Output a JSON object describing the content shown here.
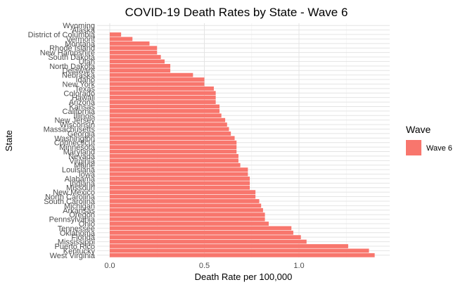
{
  "chart_data": {
    "type": "bar",
    "orientation": "horizontal",
    "title": "COVID-19 Death Rates by State - Wave 6",
    "xlabel": "Death Rate per 100,000",
    "ylabel": "State",
    "xlim": [
      0,
      1.4
    ],
    "xticks": [
      "0.0",
      "0.5",
      "1.0"
    ],
    "grid": true,
    "legend": {
      "title": "Wave",
      "position": "right",
      "entries": [
        {
          "label": "Wave 6",
          "color": "#F8766D"
        }
      ]
    },
    "series": [
      {
        "name": "Wave 6",
        "color": "#F8766D"
      }
    ],
    "categories": [
      "Wyoming",
      "Alaska",
      "District of Columbia",
      "Vermont",
      "Montana",
      "Rhode Island",
      "New Hampshire",
      "South Dakota",
      "Utah",
      "North Dakota",
      "Delaware",
      "Nebraska",
      "Idaho",
      "New York",
      "Texas",
      "Colorado",
      "Hawaii",
      "Arizona",
      "Kansas",
      "California",
      "Illinois",
      "New Jersey",
      "Wisconsin",
      "Massachusetts",
      "Georgia",
      "Washington",
      "Connecticut",
      "Minnesota",
      "Maryland",
      "Nevada",
      "Virginia",
      "Maine",
      "Louisiana",
      "Iowa",
      "Alabama",
      "Indiana",
      "Missouri",
      "New Mexico",
      "North Carolina",
      "South Carolina",
      "Michigan",
      "Arkansas",
      "Oregon",
      "Pennsylvania",
      "Ohio",
      "Tennessee",
      "Oklahoma",
      "Florida",
      "Mississippi",
      "Puerto Rico",
      "Kentucky",
      "West Virginia"
    ],
    "values": [
      0.0,
      0.0,
      0.06,
      0.12,
      0.21,
      0.25,
      0.25,
      0.27,
      0.29,
      0.32,
      0.32,
      0.44,
      0.5,
      0.5,
      0.55,
      0.56,
      0.56,
      0.56,
      0.58,
      0.58,
      0.59,
      0.61,
      0.62,
      0.63,
      0.64,
      0.66,
      0.67,
      0.67,
      0.67,
      0.68,
      0.68,
      0.69,
      0.73,
      0.73,
      0.74,
      0.74,
      0.74,
      0.77,
      0.77,
      0.79,
      0.8,
      0.81,
      0.82,
      0.82,
      0.84,
      0.96,
      0.97,
      1.01,
      1.04,
      1.26,
      1.37,
      1.4
    ]
  }
}
